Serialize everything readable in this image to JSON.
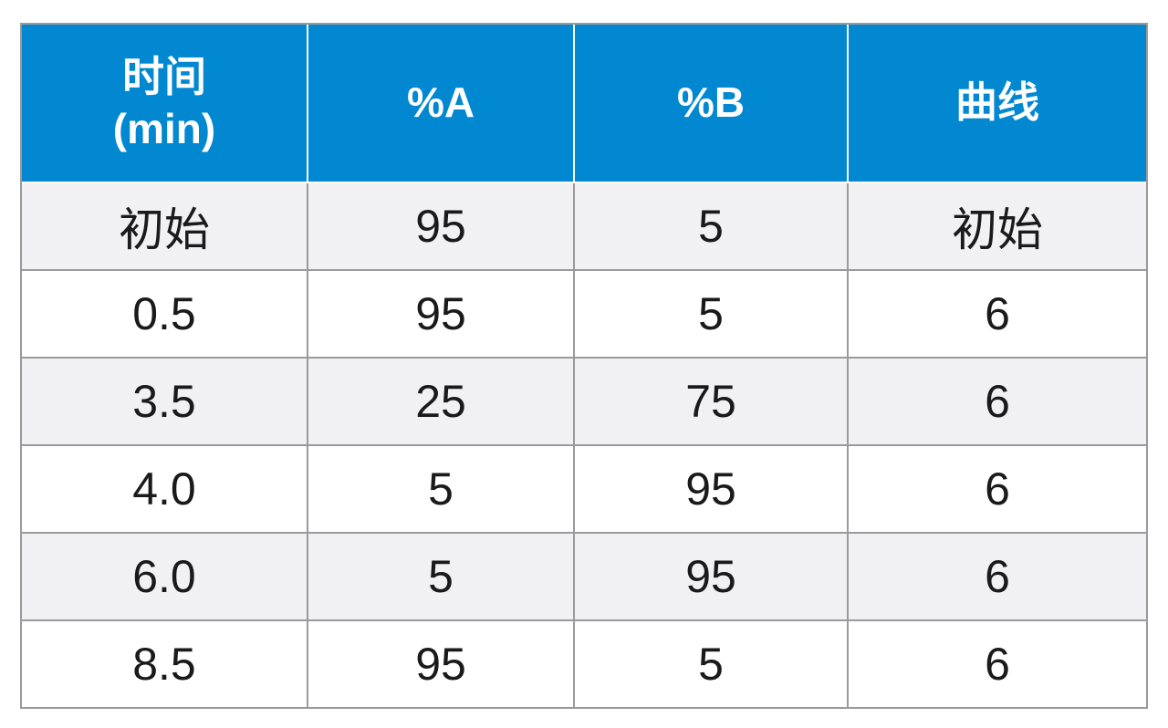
{
  "table": {
    "header": {
      "time_line1": "时间",
      "time_line2": "(min)",
      "col_a": "%A",
      "col_b": "%B",
      "curve": "曲线"
    },
    "rows": [
      {
        "time": "初始",
        "a": "95",
        "b": "5",
        "curve": "初始"
      },
      {
        "time": "0.5",
        "a": "95",
        "b": "5",
        "curve": "6"
      },
      {
        "time": "3.5",
        "a": "25",
        "b": "75",
        "curve": "6"
      },
      {
        "time": "4.0",
        "a": "5",
        "b": "95",
        "curve": "6"
      },
      {
        "time": "6.0",
        "a": "5",
        "b": "95",
        "curve": "6"
      },
      {
        "time": "8.5",
        "a": "95",
        "b": "5",
        "curve": "6"
      }
    ]
  },
  "colors": {
    "header_bg": "#0288d1",
    "header_text": "#ffffff",
    "stripe_bg": "#f1f1f3",
    "border": "#9a9a9a"
  }
}
